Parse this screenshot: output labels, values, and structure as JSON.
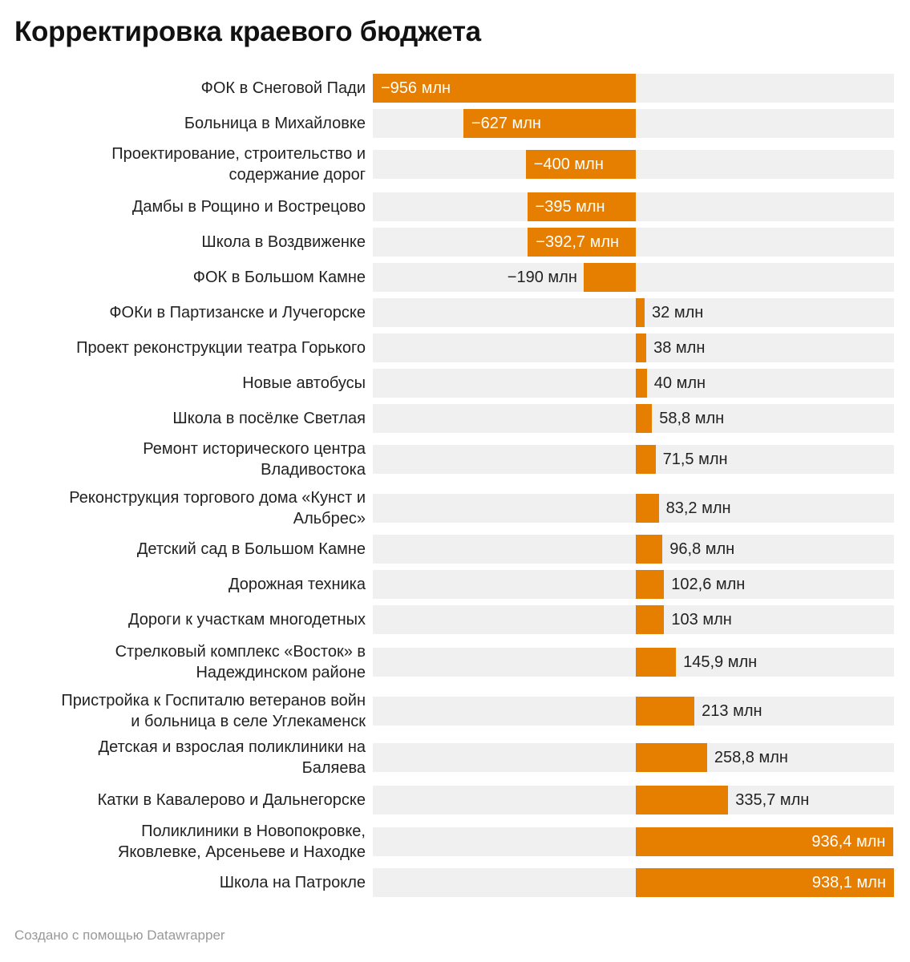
{
  "title": "Корректировка краевого бюджета",
  "footer": "Создано с помощью Datawrapper",
  "chart_data": {
    "type": "bar",
    "orientation": "horizontal",
    "title": "Корректировка краевого бюджета",
    "unit": "млн",
    "bar_color": "#e67e00",
    "background_band_color": "#f0f0f0",
    "xlim": [
      -956,
      938.1
    ],
    "grid": false,
    "categories": [
      [
        "ФОК в Снеговой Пади"
      ],
      [
        "Больница в Михайловке"
      ],
      [
        "Проектирование, строительство и",
        "содержание дорог"
      ],
      [
        "Дамбы в Рощино и Вострецово"
      ],
      [
        "Школа в Воздвиженке"
      ],
      [
        "ФОК в Большом Камне"
      ],
      [
        "ФОКи в Партизанске и Лучегорске"
      ],
      [
        "Проект реконструкции театра Горького"
      ],
      [
        "Новые автобусы"
      ],
      [
        "Школа в посёлке Светлая"
      ],
      [
        "Ремонт исторического центра",
        "Владивостока"
      ],
      [
        "Реконструкция торгового дома «Кунст и",
        "Альбрес»"
      ],
      [
        "Детский сад в Большом Камне"
      ],
      [
        "Дорожная техника"
      ],
      [
        "Дороги к участкам многодетных"
      ],
      [
        "Стрелковый комплекс «Восток» в",
        "Надеждинском районе"
      ],
      [
        "Пристройка к Госпиталю ветеранов войн",
        "и больница в селе Углекаменск"
      ],
      [
        "Детская и взрослая поликлиники на",
        "Баляева"
      ],
      [
        "Катки в Кавалерово и Дальнегорске"
      ],
      [
        "Поликлиники в Новопокровке,",
        "Яковлевке, Арсеньеве и Находке"
      ],
      [
        "Школа на Патрокле"
      ]
    ],
    "values": [
      -956,
      -627,
      -400,
      -395,
      -392.7,
      -190,
      32,
      38,
      40,
      58.8,
      71.5,
      83.2,
      96.8,
      102.6,
      103,
      145.9,
      213,
      258.8,
      335.7,
      936.4,
      938.1
    ],
    "value_labels": [
      "−956 млн",
      "−627 млн",
      "−400 млн",
      "−395 млн",
      "−392,7 млн",
      "−190 млн",
      "32 млн",
      "38 млн",
      "40 млн",
      "58,8 млн",
      "71,5 млн",
      "83,2 млн",
      "96,8 млн",
      "102,6 млн",
      "103 млн",
      "145,9 млн",
      "213 млн",
      "258,8 млн",
      "335,7 млн",
      "936,4 млн",
      "938,1 млн"
    ]
  }
}
